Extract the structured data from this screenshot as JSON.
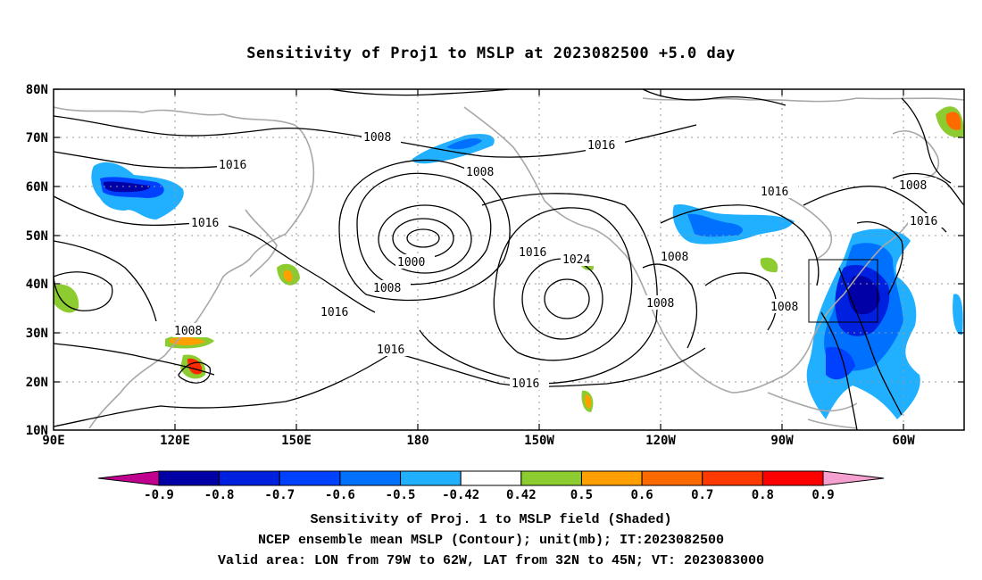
{
  "title": "Sensitivity of Proj1 to MSLP at 2023082500 +5.0 day",
  "lat_labels": [
    "80N",
    "70N",
    "60N",
    "50N",
    "40N",
    "30N",
    "20N",
    "10N"
  ],
  "lon_labels": [
    "90E",
    "120E",
    "150E",
    "180",
    "150W",
    "120W",
    "90W",
    "60W"
  ],
  "colorbar": {
    "tick_labels": [
      "-0.9",
      "-0.8",
      "-0.7",
      "-0.6",
      "-0.5",
      "-0.42",
      "0.42",
      "0.5",
      "0.6",
      "0.7",
      "0.8",
      "0.9"
    ],
    "colors": [
      "#c0008f",
      "#0000a6",
      "#0020e0",
      "#0040ff",
      "#0070ff",
      "#20b0ff",
      "#ffffff",
      "#8ccc30",
      "#ffa000",
      "#ff6a00",
      "#ff3a00",
      "#ff0000",
      "#f5a0d0"
    ]
  },
  "contour_labels": [
    "1008",
    "1016",
    "1008",
    "1016",
    "1016",
    "1000",
    "1008",
    "1016",
    "1016",
    "1024",
    "1008",
    "1008",
    "1016",
    "1008",
    "1016",
    "1008",
    "1008",
    "1016",
    "1016"
  ],
  "valid_box": {
    "lon_west": "79W",
    "lon_east": "62W",
    "lat_south": "32N",
    "lat_north": "45N"
  },
  "footer": {
    "line1": "Sensitivity of Proj. 1 to MSLP field (Shaded)",
    "line2": "NCEP ensemble mean MSLP (Contour); unit(mb); IT:2023082500",
    "line3": "Valid area: LON from 79W to 62W, LAT from 32N to 45N; VT: 2023083000"
  }
}
